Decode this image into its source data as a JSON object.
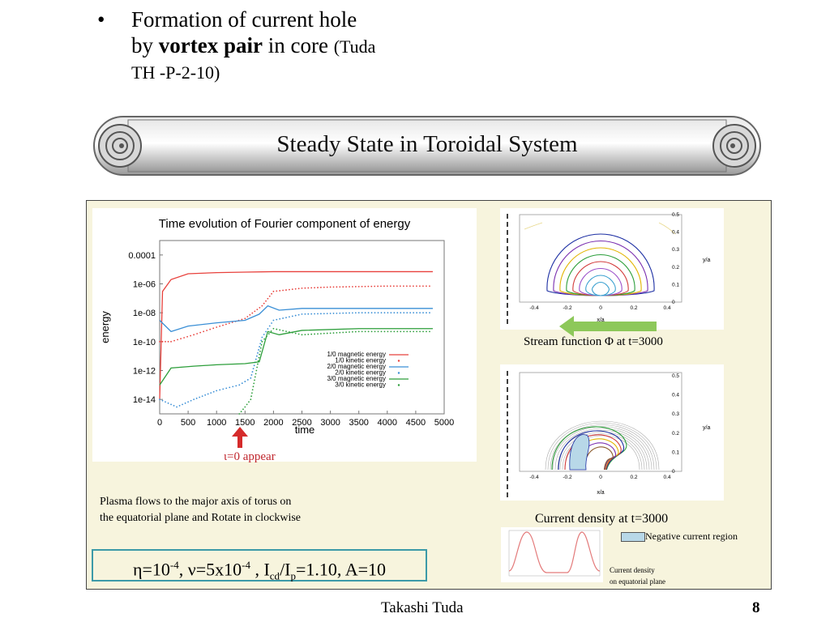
{
  "bullet": {
    "dot": "•",
    "line1": "Formation of current hole",
    "line2_pre": "by ",
    "line2_bold": "vortex pair",
    "line2_post": " in core ",
    "ref_a": "(Tuda",
    "ref_b": "TH -P-2-10)"
  },
  "banner": {
    "title": "Steady State in Toroidal System"
  },
  "energy_chart": {
    "title": "Time evolution of Fourier component of energy",
    "xlabel": "time",
    "ylabel": "energy",
    "x_ticks": [
      "0",
      "500",
      "1000",
      "1500",
      "2000",
      "2500",
      "3000",
      "3500",
      "4000",
      "4500",
      "5000"
    ],
    "y_ticks": [
      "0.0001",
      "1e-06",
      "1e-08",
      "1e-10",
      "1e-12",
      "1e-14"
    ],
    "legend": [
      "1/0 magnetic energy",
      "1/0 kinetic energy",
      "2/0 magnetic energy",
      "2/0 kinetic energy",
      "3/0  magnetic energy",
      "3/0 kinetic energy"
    ],
    "colors": [
      "#e8413c",
      "#e8413c",
      "#3a8fd6",
      "#3a8fd6",
      "#2c9e3a",
      "#2c9e3a"
    ]
  },
  "chart_data": {
    "type": "line",
    "title": "Time evolution of Fourier component of energy",
    "xlabel": "time",
    "ylabel": "energy",
    "xlim": [
      0,
      5000
    ],
    "y_scale": "log",
    "ylim": [
      1e-15,
      0.001
    ],
    "grid": false,
    "legend_position": "center-right",
    "series": [
      {
        "name": "1/0 magnetic energy",
        "x": [
          0,
          50,
          200,
          500,
          1000,
          1500,
          2000,
          3000,
          4000,
          4800
        ],
        "y": [
          1e-14,
          3e-07,
          2e-06,
          5e-06,
          6e-06,
          6.5e-06,
          7e-06,
          7e-06,
          7e-06,
          7e-06
        ]
      },
      {
        "name": "1/0 kinetic energy",
        "x": [
          0,
          200,
          600,
          1000,
          1500,
          1800,
          2000,
          2500,
          3000,
          4000,
          4800
        ],
        "y": [
          1e-10,
          1e-10,
          3e-10,
          1e-09,
          4e-09,
          3e-08,
          3e-07,
          5e-07,
          6e-07,
          7e-07,
          7e-07
        ]
      },
      {
        "name": "2/0 magnetic energy",
        "x": [
          0,
          200,
          500,
          1000,
          1500,
          1750,
          1900,
          2100,
          2500,
          3500,
          4800
        ],
        "y": [
          3e-09,
          5e-10,
          1.2e-09,
          2e-09,
          3e-09,
          8e-09,
          3e-08,
          1.5e-08,
          2e-08,
          2e-08,
          2e-08
        ]
      },
      {
        "name": "2/0 kinetic energy",
        "x": [
          0,
          300,
          600,
          1000,
          1400,
          1600,
          1800,
          2000,
          2500,
          3500,
          4800
        ],
        "y": [
          1e-14,
          3e-15,
          1e-14,
          4e-14,
          1e-13,
          3e-13,
          2e-10,
          3e-09,
          8e-09,
          1e-08,
          1e-08
        ]
      },
      {
        "name": "3/0  magnetic energy",
        "x": [
          0,
          200,
          600,
          1000,
          1500,
          1750,
          1900,
          2100,
          2500,
          3500,
          4800
        ],
        "y": [
          1e-13,
          1.5e-12,
          2e-12,
          2.5e-12,
          3e-12,
          4e-12,
          5e-10,
          3e-10,
          6e-10,
          8e-10,
          8e-10
        ]
      },
      {
        "name": "3/0 kinetic energy",
        "x": [
          1400,
          1500,
          1600,
          1700,
          1800,
          2000,
          2500,
          3500,
          4800
        ],
        "y": [
          1e-15,
          3e-15,
          1e-14,
          1e-12,
          1e-10,
          8e-10,
          3e-10,
          5e-10,
          5e-10
        ]
      }
    ]
  },
  "arrow_caption": "ι=0 appear",
  "stream": {
    "caption": "Stream function Φ at t=3000",
    "x_ticks": [
      "-0.4",
      "-0.2",
      "0",
      "0.2",
      "0.4"
    ],
    "y_ticks": [
      "0.5",
      "0.4",
      "0.3",
      "0.2",
      "0.1",
      "0"
    ],
    "xlabel": "x/a",
    "ylabel": "y/a"
  },
  "current": {
    "caption": "Current density at t=3000",
    "x_ticks": [
      "-0.4",
      "-0.2",
      "0",
      "0.2",
      "0.4"
    ],
    "y_ticks": [
      "0.5",
      "0.4",
      "0.3",
      "0.2",
      "0.1",
      "0"
    ],
    "xlabel": "x/a",
    "ylabel": "y/a",
    "legend": "Negative current region"
  },
  "flow_note": {
    "line1": "Plasma flows to the major axis of torus on",
    "line2": "the equatorial plane and Rotate in clockwise"
  },
  "formula": {
    "eta": "η=10",
    "eta_exp": "-4",
    "nu": ", ν=5x10",
    "nu_exp": "-4",
    "icd": " , I",
    "cd": "cd",
    "slash": "/I",
    "p": "p",
    "rest": "=1.10, A=10"
  },
  "small_plot_caption": {
    "line1": "Current density",
    "line2": "on equatorial plane"
  },
  "footer": {
    "name": "Takashi Tuda",
    "page": "8"
  }
}
